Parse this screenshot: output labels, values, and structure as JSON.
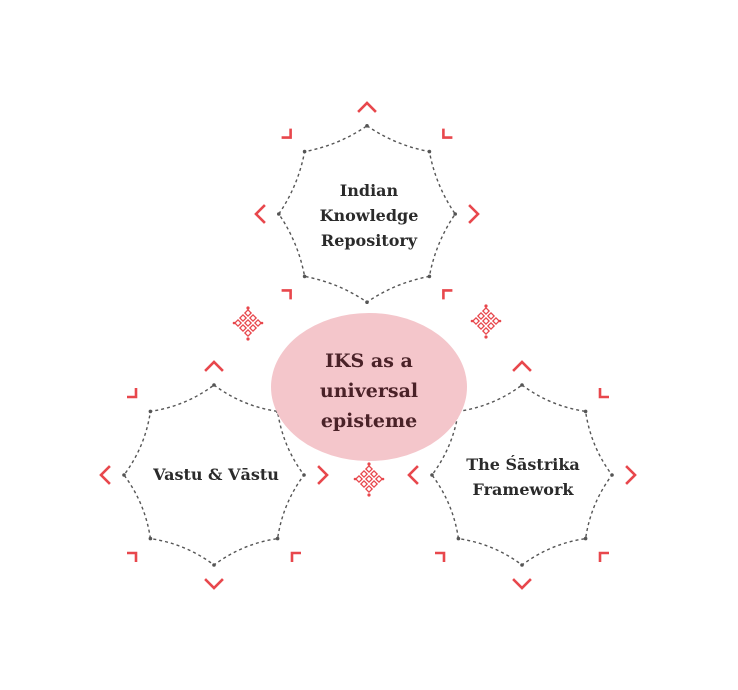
{
  "colors": {
    "accent": "#e8474c",
    "center_fill": "#f4c6cb",
    "outline": "#555555",
    "text": "#2b2b2b",
    "center_text": "#4a2228"
  },
  "center": {
    "lines": [
      "IKS as a",
      "universal",
      "episteme"
    ]
  },
  "nodes": {
    "top": {
      "lines": [
        "Indian",
        "Knowledge",
        "Repository"
      ]
    },
    "left": {
      "lines": [
        "Vastu & Vāstu"
      ]
    },
    "right": {
      "lines": [
        "The Śāstrika",
        "Framework"
      ]
    }
  },
  "ornament_icons": [
    "kolam-knot-icon",
    "kolam-knot-icon",
    "kolam-knot-icon"
  ]
}
